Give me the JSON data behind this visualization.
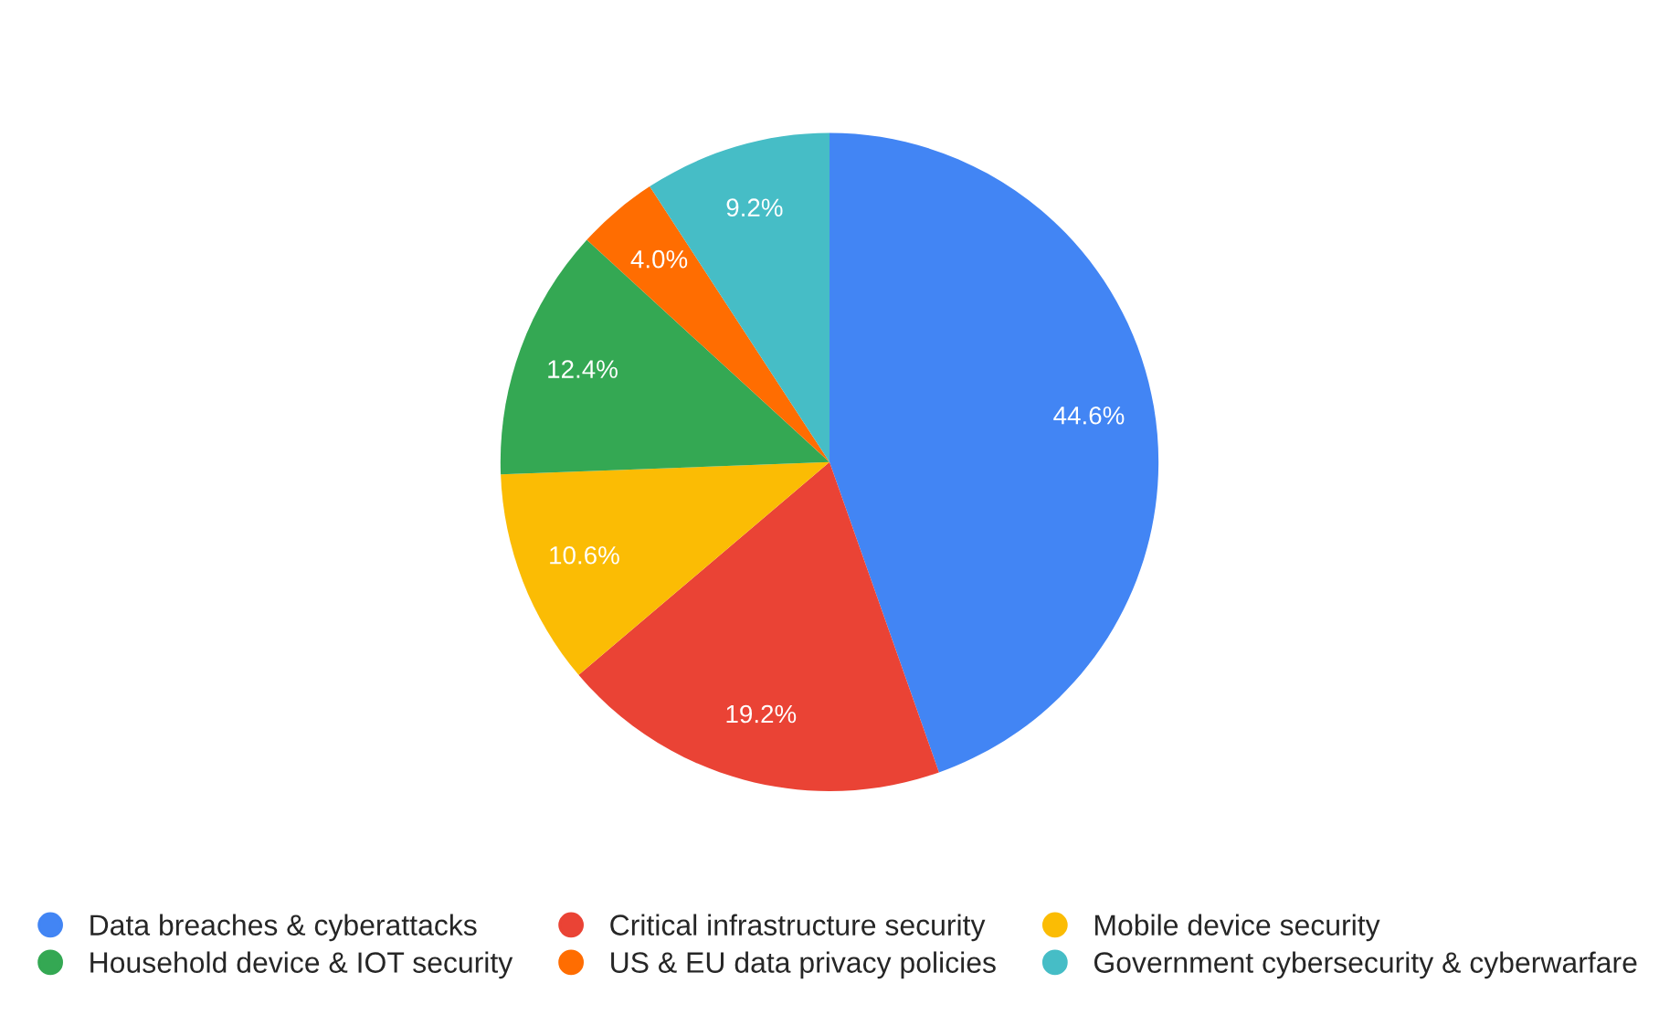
{
  "chart_data": {
    "type": "pie",
    "categories": [
      "Data breaches & cyberattacks",
      "Critical infrastructure security",
      "Mobile device security",
      "Household device & IOT security",
      "US & EU data privacy policies",
      "Government cybersecurity & cyberwarfare"
    ],
    "values": [
      44.6,
      19.2,
      10.6,
      12.4,
      4.0,
      9.2
    ],
    "colors": [
      "#4285f4",
      "#ea4335",
      "#fbbc04",
      "#34a853",
      "#ff6d01",
      "#46bdc6"
    ],
    "value_labels": [
      "44.6%",
      "19.2%",
      "10.6%",
      "12.4%",
      "4.0%",
      "9.2%"
    ],
    "legend": "bottom"
  }
}
